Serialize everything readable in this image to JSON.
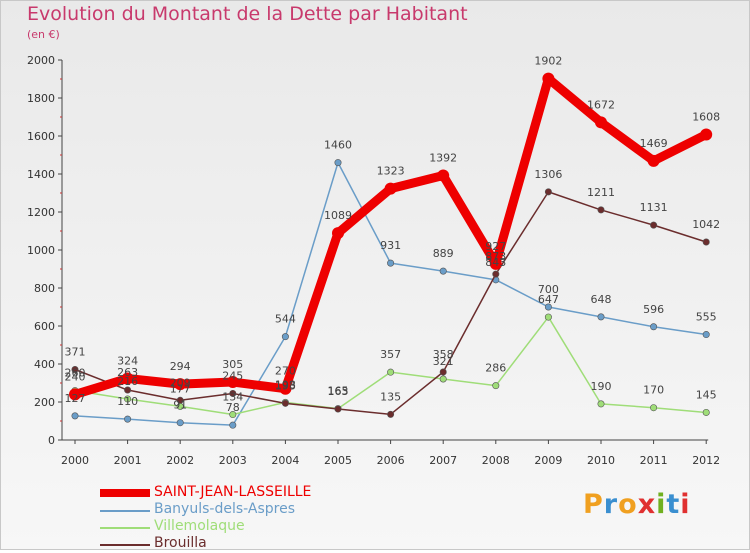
{
  "chart_data": {
    "type": "line",
    "title": "Evolution du Montant de la Dette par Habitant",
    "subtitle": "(en €)",
    "categories": [
      "2000",
      "2001",
      "2002",
      "2003",
      "2004",
      "2005",
      "2006",
      "2007",
      "2008",
      "2009",
      "2010",
      "2011",
      "2012"
    ],
    "ylim": [
      0,
      2000
    ],
    "yticks": [
      "0",
      "200",
      "400",
      "600",
      "800",
      "1000",
      "1200",
      "1400",
      "1600",
      "1800",
      "2000"
    ],
    "grid": false,
    "legend_position": "bottom-left",
    "series": [
      {
        "name": "SAINT-JEAN-LASSEILLE",
        "color": "#ee0000",
        "values": [
          240,
          324,
          294,
          305,
          270,
          1089,
          1323,
          1392,
          927,
          1902,
          1672,
          1469,
          1608
        ]
      },
      {
        "name": "Banyuls-dels-Aspres",
        "color": "#6a9dc8",
        "values": [
          127,
          110,
          91,
          78,
          544,
          1460,
          931,
          889,
          843,
          700,
          648,
          596,
          555
        ]
      },
      {
        "name": "Villemolaque",
        "color": "#9fdd78",
        "values": [
          260,
          216,
          177,
          134,
          198,
          165,
          357,
          321,
          286,
          647,
          190,
          170,
          145
        ]
      },
      {
        "name": "Brouilla",
        "color": "#6b2d2d",
        "values": [
          371,
          263,
          209,
          245,
          193,
          163,
          135,
          358,
          873,
          1306,
          1211,
          1131,
          1042
        ]
      }
    ],
    "data_labels": [
      [
        "240",
        "324",
        "294",
        "305",
        "270",
        "1089",
        "1323",
        "1392",
        "927",
        "1902",
        "1672",
        "1469",
        "1608"
      ],
      [
        "127",
        "110",
        "91",
        "78",
        "544",
        "1460",
        "931",
        "889",
        "843",
        "700",
        "648",
        "596",
        "555"
      ],
      [
        "260",
        "216",
        "177",
        "134",
        "198",
        "165",
        "357",
        "321",
        "286",
        "647",
        "190",
        "170",
        "145"
      ],
      [
        "371",
        "263",
        "209",
        "245",
        "193",
        "163",
        "135",
        "358",
        "873",
        "1306",
        "1211",
        "1131",
        "1042"
      ]
    ]
  },
  "logo": {
    "letters": [
      "P",
      "r",
      "o",
      "x",
      "i",
      "t",
      "i"
    ],
    "colors": [
      "#f0a020",
      "#3a8fd0",
      "#f0a020",
      "#e03030",
      "#70b020",
      "#3a8fd0",
      "#e03030"
    ]
  }
}
